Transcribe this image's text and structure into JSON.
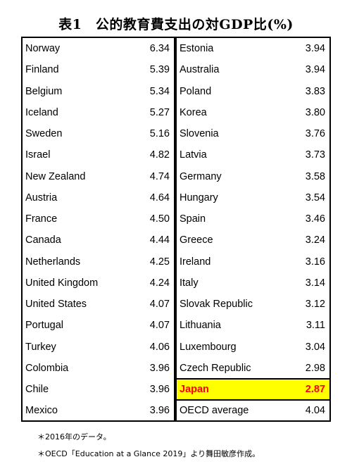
{
  "title": "表1　公的教育費支出の対GDP比(%)",
  "chart_data": {
    "type": "table",
    "title": "表1　公的教育費支出の対GDP比(%)",
    "left_column": [
      {
        "country": "Norway",
        "value": "6.34"
      },
      {
        "country": "Finland",
        "value": "5.39"
      },
      {
        "country": "Belgium",
        "value": "5.34"
      },
      {
        "country": "Iceland",
        "value": "5.27"
      },
      {
        "country": "Sweden",
        "value": "5.16"
      },
      {
        "country": "Israel",
        "value": "4.82"
      },
      {
        "country": "New Zealand",
        "value": "4.74"
      },
      {
        "country": "Austria",
        "value": "4.64"
      },
      {
        "country": "France",
        "value": "4.50"
      },
      {
        "country": "Canada",
        "value": "4.44"
      },
      {
        "country": "Netherlands",
        "value": "4.25"
      },
      {
        "country": "United Kingdom",
        "value": "4.24"
      },
      {
        "country": "United States",
        "value": "4.07"
      },
      {
        "country": "Portugal",
        "value": "4.07"
      },
      {
        "country": "Turkey",
        "value": "4.06"
      },
      {
        "country": "Colombia",
        "value": "3.96"
      },
      {
        "country": "Chile",
        "value": "3.96"
      },
      {
        "country": "Mexico",
        "value": "3.96"
      }
    ],
    "right_column": [
      {
        "country": "Estonia",
        "value": "3.94"
      },
      {
        "country": "Australia",
        "value": "3.94"
      },
      {
        "country": "Poland",
        "value": "3.83"
      },
      {
        "country": "Korea",
        "value": "3.80"
      },
      {
        "country": "Slovenia",
        "value": "3.76"
      },
      {
        "country": "Latvia",
        "value": "3.73"
      },
      {
        "country": "Germany",
        "value": "3.58"
      },
      {
        "country": "Hungary",
        "value": "3.54"
      },
      {
        "country": "Spain",
        "value": "3.46"
      },
      {
        "country": "Greece",
        "value": "3.24"
      },
      {
        "country": "Ireland",
        "value": "3.16"
      },
      {
        "country": "Italy",
        "value": "3.14"
      },
      {
        "country": "Slovak Republic",
        "value": "3.12"
      },
      {
        "country": "Lithuania",
        "value": "3.11"
      },
      {
        "country": "Luxembourg",
        "value": "3.04"
      },
      {
        "country": "Czech Republic",
        "value": "2.98"
      },
      {
        "country": "Japan",
        "value": "2.87",
        "highlight": true
      },
      {
        "country": "OECD average",
        "value": "4.04"
      }
    ],
    "highlight_colors": {
      "background": "#ffff00",
      "text": "#ff0000"
    }
  },
  "notes": [
    "＊2016年のデータ。",
    "＊OECD「Education at a Glance 2019」より舞田敏彦作成。"
  ]
}
